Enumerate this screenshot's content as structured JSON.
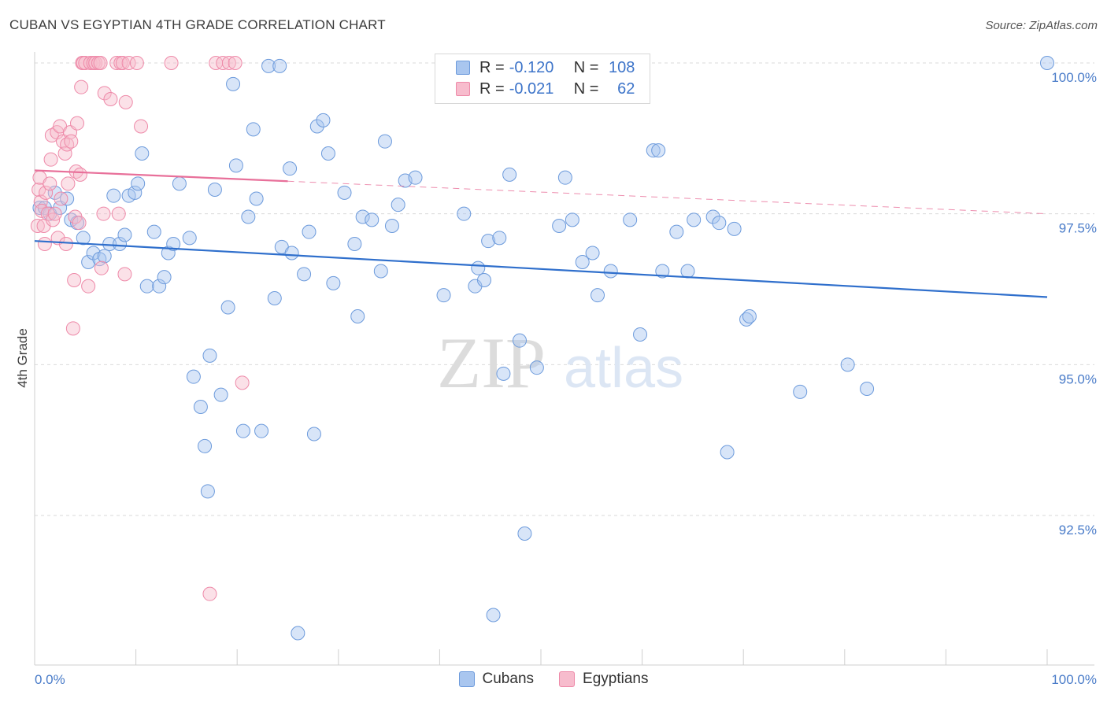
{
  "chart_data": {
    "type": "scatter",
    "title": "CUBAN VS EGYPTIAN 4TH GRADE CORRELATION CHART",
    "source": "Source: ZipAtlas.com",
    "xlabel": "",
    "ylabel": "4th Grade",
    "xlim": [
      0,
      100
    ],
    "ylim": [
      90.0,
      100.25
    ],
    "x_tick_labels": {
      "left": "0.0%",
      "right": "100.0%"
    },
    "y_ticks": [
      {
        "value": 100.0,
        "label": "100.0%"
      },
      {
        "value": 97.5,
        "label": "97.5%"
      },
      {
        "value": 95.0,
        "label": "95.0%"
      },
      {
        "value": 92.5,
        "label": "92.5%"
      }
    ],
    "watermark": {
      "zip": "ZIP",
      "atlas": "atlas"
    },
    "legend": [
      {
        "r_label": "R =",
        "r_value": "-0.120",
        "n_label": "N =",
        "n_value": "108"
      },
      {
        "r_label": "R =",
        "r_value": "-0.021",
        "n_label": "N =",
        "n_value": "62"
      }
    ],
    "series": [
      {
        "name": "Cubans",
        "color": "#a9c6ef",
        "stroke": "#6d9bdc",
        "line_color": "#2f6fcc",
        "trend": {
          "x": [
            0,
            100
          ],
          "y": [
            97.05,
            96.12
          ],
          "dashed_from": null
        },
        "points": [
          [
            0.5,
            97.6
          ],
          [
            1.0,
            97.6
          ],
          [
            1.5,
            97.5
          ],
          [
            2.0,
            97.85
          ],
          [
            2.5,
            97.6
          ],
          [
            3.2,
            97.75
          ],
          [
            3.6,
            97.4
          ],
          [
            4.2,
            97.35
          ],
          [
            4.8,
            97.1
          ],
          [
            5.3,
            96.7
          ],
          [
            5.8,
            96.85
          ],
          [
            6.4,
            96.75
          ],
          [
            6.9,
            96.8
          ],
          [
            7.4,
            97.0
          ],
          [
            7.8,
            97.8
          ],
          [
            8.4,
            97.0
          ],
          [
            8.9,
            97.15
          ],
          [
            9.3,
            97.8
          ],
          [
            9.9,
            97.85
          ],
          [
            10.2,
            98.0
          ],
          [
            10.6,
            98.5
          ],
          [
            11.1,
            96.3
          ],
          [
            11.8,
            97.2
          ],
          [
            12.3,
            96.3
          ],
          [
            12.8,
            96.45
          ],
          [
            13.2,
            96.85
          ],
          [
            13.7,
            97.0
          ],
          [
            14.3,
            98.0
          ],
          [
            15.3,
            97.1
          ],
          [
            15.7,
            94.8
          ],
          [
            16.4,
            94.3
          ],
          [
            16.8,
            93.65
          ],
          [
            17.1,
            92.9
          ],
          [
            17.3,
            95.15
          ],
          [
            17.8,
            97.9
          ],
          [
            18.4,
            94.5
          ],
          [
            19.1,
            95.95
          ],
          [
            19.6,
            99.65
          ],
          [
            19.9,
            98.3
          ],
          [
            20.6,
            93.9
          ],
          [
            21.1,
            97.45
          ],
          [
            21.6,
            98.9
          ],
          [
            21.9,
            97.75
          ],
          [
            22.4,
            93.9
          ],
          [
            23.1,
            99.95
          ],
          [
            23.7,
            96.1
          ],
          [
            24.2,
            99.95
          ],
          [
            24.4,
            96.95
          ],
          [
            25.2,
            98.25
          ],
          [
            25.4,
            96.85
          ],
          [
            26.6,
            96.5
          ],
          [
            27.1,
            97.2
          ],
          [
            27.6,
            93.85
          ],
          [
            27.9,
            98.95
          ],
          [
            28.5,
            99.05
          ],
          [
            29.0,
            98.5
          ],
          [
            29.5,
            96.35
          ],
          [
            30.6,
            97.85
          ],
          [
            31.6,
            97.0
          ],
          [
            31.9,
            95.8
          ],
          [
            32.4,
            97.45
          ],
          [
            33.3,
            97.4
          ],
          [
            34.2,
            96.55
          ],
          [
            34.6,
            98.7
          ],
          [
            35.3,
            97.3
          ],
          [
            35.9,
            97.65
          ],
          [
            36.6,
            98.05
          ],
          [
            37.6,
            98.1
          ],
          [
            40.4,
            96.15
          ],
          [
            42.4,
            97.5
          ],
          [
            43.5,
            96.3
          ],
          [
            43.8,
            96.6
          ],
          [
            44.4,
            96.4
          ],
          [
            44.8,
            97.05
          ],
          [
            45.3,
            90.85
          ],
          [
            45.9,
            97.1
          ],
          [
            46.3,
            94.85
          ],
          [
            46.9,
            98.15
          ],
          [
            47.9,
            95.4
          ],
          [
            48.4,
            92.2
          ],
          [
            49.6,
            94.95
          ],
          [
            51.8,
            97.3
          ],
          [
            52.4,
            98.1
          ],
          [
            53.1,
            97.4
          ],
          [
            54.1,
            96.7
          ],
          [
            55.1,
            96.85
          ],
          [
            55.6,
            96.15
          ],
          [
            56.9,
            96.55
          ],
          [
            58.8,
            97.4
          ],
          [
            59.8,
            95.5
          ],
          [
            61.1,
            98.55
          ],
          [
            61.6,
            98.55
          ],
          [
            62.0,
            96.55
          ],
          [
            63.4,
            97.2
          ],
          [
            64.5,
            96.55
          ],
          [
            65.1,
            97.4
          ],
          [
            67.0,
            97.45
          ],
          [
            67.6,
            97.35
          ],
          [
            68.4,
            93.55
          ],
          [
            69.1,
            97.25
          ],
          [
            70.3,
            95.75
          ],
          [
            70.6,
            95.8
          ],
          [
            75.6,
            94.55
          ],
          [
            80.3,
            95.0
          ],
          [
            82.2,
            94.6
          ],
          [
            100.0,
            100.0
          ],
          [
            26.0,
            90.55
          ]
        ]
      },
      {
        "name": "Egyptians",
        "color": "#f7bccd",
        "stroke": "#ee8aa9",
        "line_color": "#e8709a",
        "trend": {
          "x": [
            0,
            100
          ],
          "y": [
            98.22,
            97.5
          ],
          "dashed_from": 25
        },
        "points": [
          [
            0.3,
            97.3
          ],
          [
            0.4,
            97.9
          ],
          [
            0.5,
            98.1
          ],
          [
            0.6,
            97.7
          ],
          [
            0.7,
            97.55
          ],
          [
            0.9,
            97.3
          ],
          [
            1.0,
            97.0
          ],
          [
            1.1,
            97.85
          ],
          [
            1.3,
            97.5
          ],
          [
            1.5,
            98.0
          ],
          [
            1.6,
            98.4
          ],
          [
            1.7,
            98.8
          ],
          [
            1.8,
            97.4
          ],
          [
            2.0,
            97.5
          ],
          [
            2.2,
            98.85
          ],
          [
            2.3,
            97.1
          ],
          [
            2.5,
            98.95
          ],
          [
            2.6,
            97.75
          ],
          [
            2.8,
            98.7
          ],
          [
            3.0,
            98.5
          ],
          [
            3.1,
            97.0
          ],
          [
            3.2,
            98.65
          ],
          [
            3.3,
            98.0
          ],
          [
            3.5,
            98.85
          ],
          [
            3.6,
            98.7
          ],
          [
            3.8,
            95.6
          ],
          [
            3.9,
            96.4
          ],
          [
            4.0,
            97.45
          ],
          [
            4.1,
            98.2
          ],
          [
            4.2,
            99.0
          ],
          [
            4.4,
            97.35
          ],
          [
            4.5,
            98.15
          ],
          [
            4.6,
            99.6
          ],
          [
            4.7,
            100.0
          ],
          [
            4.8,
            100.0
          ],
          [
            5.0,
            100.0
          ],
          [
            5.3,
            96.3
          ],
          [
            5.5,
            100.0
          ],
          [
            5.8,
            100.0
          ],
          [
            6.0,
            100.0
          ],
          [
            6.3,
            100.0
          ],
          [
            6.5,
            100.0
          ],
          [
            6.6,
            96.6
          ],
          [
            6.8,
            97.5
          ],
          [
            6.9,
            99.5
          ],
          [
            7.5,
            99.4
          ],
          [
            8.1,
            100.0
          ],
          [
            8.3,
            97.5
          ],
          [
            8.5,
            100.0
          ],
          [
            8.7,
            100.0
          ],
          [
            8.9,
            96.5
          ],
          [
            9.0,
            99.35
          ],
          [
            9.3,
            100.0
          ],
          [
            10.1,
            100.0
          ],
          [
            10.5,
            98.95
          ],
          [
            13.5,
            100.0
          ],
          [
            17.3,
            91.2
          ],
          [
            17.9,
            100.0
          ],
          [
            18.6,
            100.0
          ],
          [
            19.2,
            100.0
          ],
          [
            19.8,
            100.0
          ],
          [
            20.5,
            94.7
          ]
        ]
      }
    ]
  }
}
